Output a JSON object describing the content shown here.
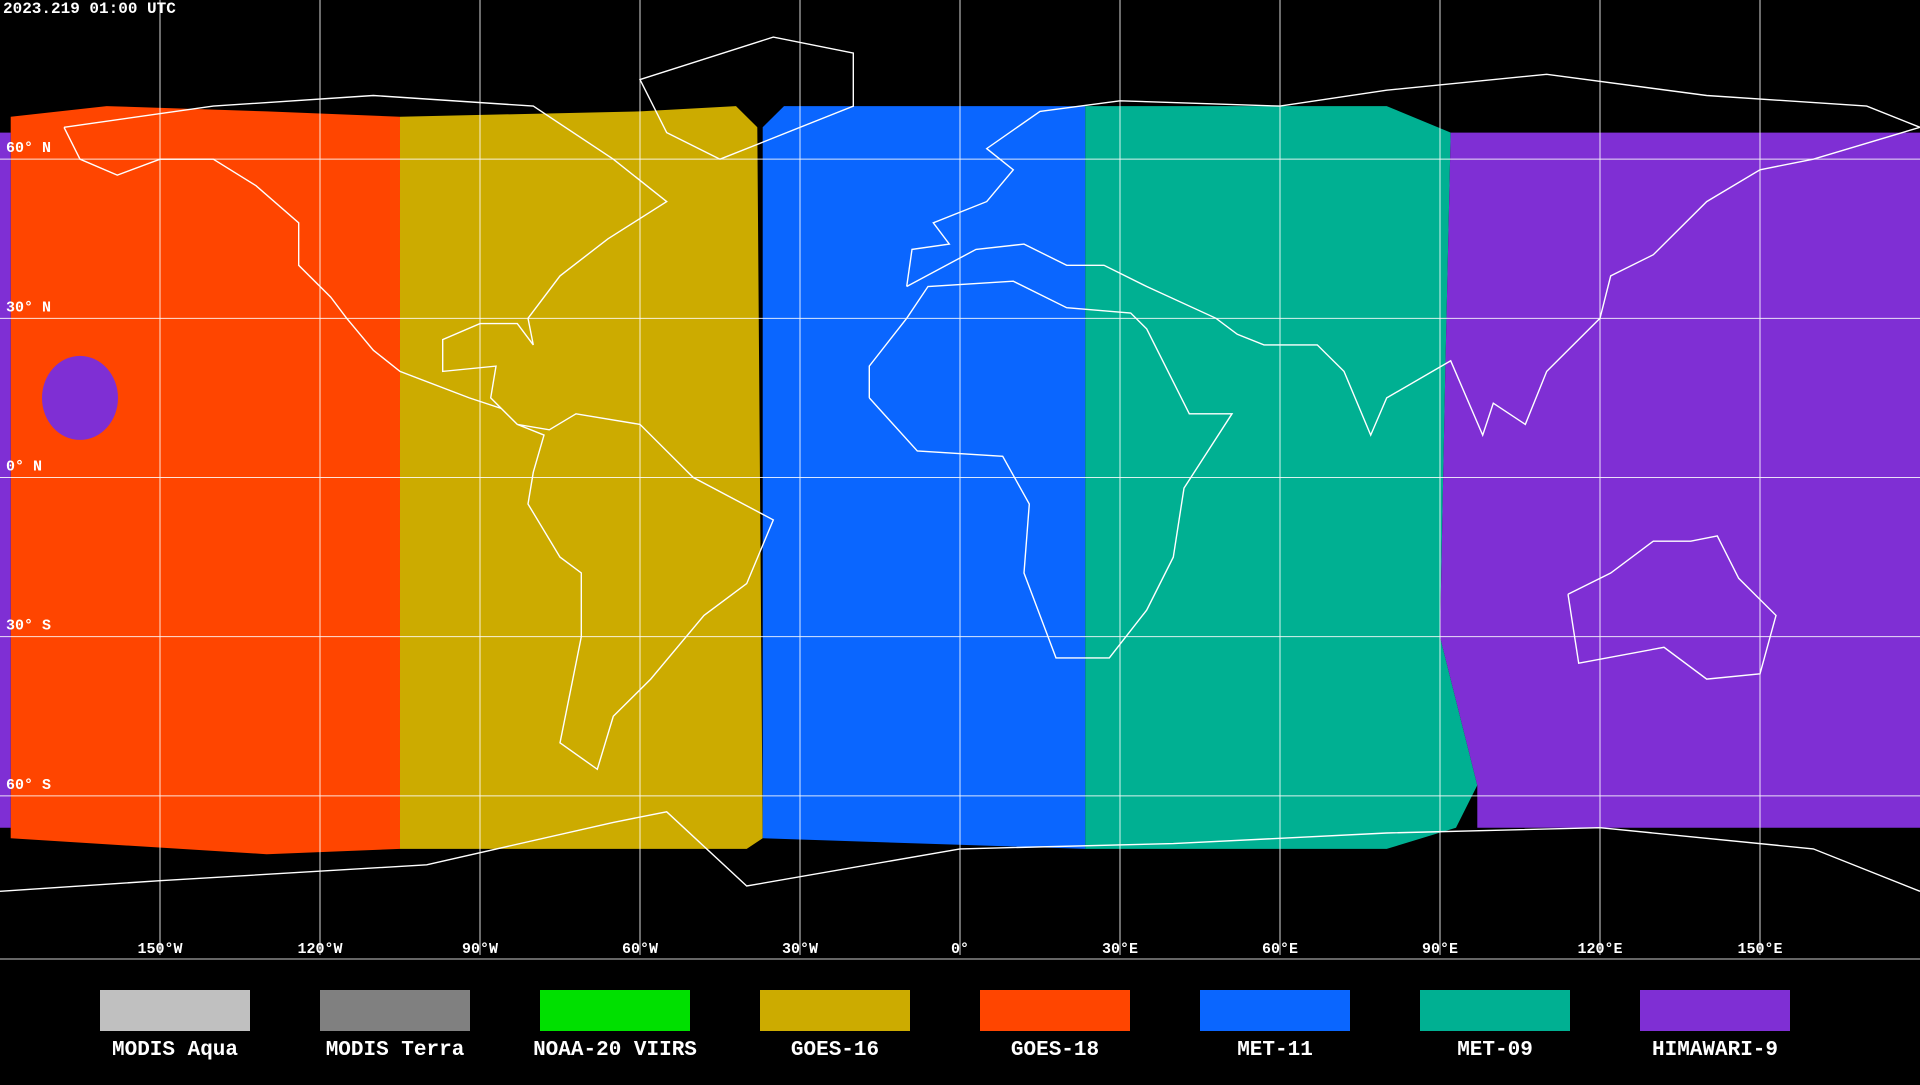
{
  "header": {
    "title": "2023.219 01:00 UTC"
  },
  "map": {
    "lat_ticks": [
      {
        "value": 60,
        "label": "60° N"
      },
      {
        "value": 30,
        "label": "30° N"
      },
      {
        "value": 0,
        "label": "0° N"
      },
      {
        "value": -30,
        "label": "30° S"
      },
      {
        "value": -60,
        "label": "60° S"
      }
    ],
    "lon_ticks": [
      {
        "value": -150,
        "label": "150°W"
      },
      {
        "value": -120,
        "label": "120°W"
      },
      {
        "value": -90,
        "label": "90°W"
      },
      {
        "value": -60,
        "label": "60°W"
      },
      {
        "value": -30,
        "label": "30°W"
      },
      {
        "value": 0,
        "label": "0°"
      },
      {
        "value": 30,
        "label": "30°E"
      },
      {
        "value": 60,
        "label": "60°E"
      },
      {
        "value": 90,
        "label": "90°E"
      },
      {
        "value": 120,
        "label": "120°E"
      },
      {
        "value": 150,
        "label": "150°E"
      }
    ]
  },
  "legend": {
    "items": [
      {
        "name": "MODIS Aqua",
        "color": "#c0c0c0"
      },
      {
        "name": "MODIS Terra",
        "color": "#808080"
      },
      {
        "name": "NOAA-20 VIIRS",
        "color": "#00e000"
      },
      {
        "name": "GOES-16",
        "color": "#ccab00"
      },
      {
        "name": "GOES-18",
        "color": "#ff4500"
      },
      {
        "name": "MET-11",
        "color": "#0a66ff"
      },
      {
        "name": "MET-09",
        "color": "#00b092"
      },
      {
        "name": "HIMAWARI-9",
        "color": "#7f2fd4"
      }
    ]
  }
}
